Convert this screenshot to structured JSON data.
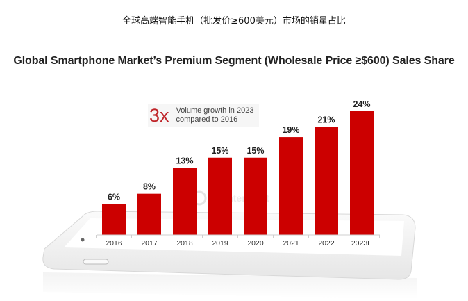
{
  "header": {
    "chinese_title": "全球高端智能手机（批发价≥600美元）市场的销量占比"
  },
  "annotation": {
    "multiplier": "3x",
    "line1": "Volume growth in 2023",
    "line2": "compared to 2016"
  },
  "watermark": "Counterpoint",
  "colors": {
    "bar": "#cc0000",
    "annotation_accent": "#c0262b"
  },
  "chart_data": {
    "type": "bar",
    "title": "Global Smartphone Market’s Premium Segment (Wholesale Price ≥$600) Sales Share",
    "xlabel": "",
    "ylabel": "",
    "categories": [
      "2016",
      "2017",
      "2018",
      "2019",
      "2020",
      "2021",
      "2022",
      "2023E"
    ],
    "values": [
      6,
      8,
      13,
      15,
      15,
      19,
      21,
      24
    ],
    "value_labels": [
      "6%",
      "8%",
      "13%",
      "15%",
      "15%",
      "19%",
      "21%",
      "24%"
    ],
    "ylim": [
      0,
      24
    ],
    "grid": false,
    "legend": "none"
  }
}
